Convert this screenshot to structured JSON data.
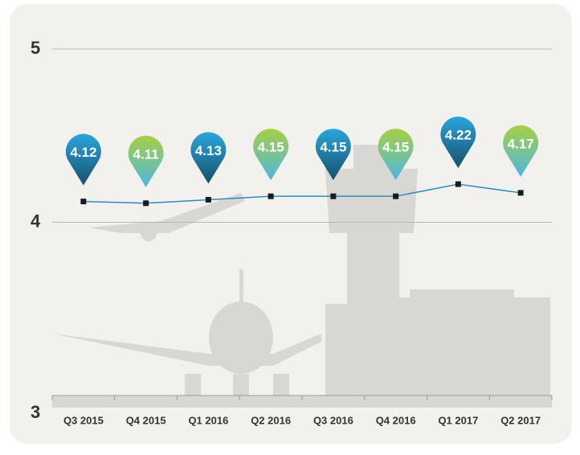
{
  "chart_data": {
    "type": "line",
    "categories": [
      "Q3 2015",
      "Q4 2015",
      "Q1 2016",
      "Q2 2016",
      "Q3 2016",
      "Q4 2016",
      "Q1 2017",
      "Q2 2017"
    ],
    "series": [
      {
        "color": "#2a8fc0",
        "values": [
          4.12,
          4.11,
          4.13,
          4.15,
          4.15,
          4.15,
          4.22,
          4.17
        ]
      }
    ],
    "ylim": [
      3,
      5
    ],
    "yticks": [
      3,
      4,
      5
    ],
    "grid": true
  }
}
